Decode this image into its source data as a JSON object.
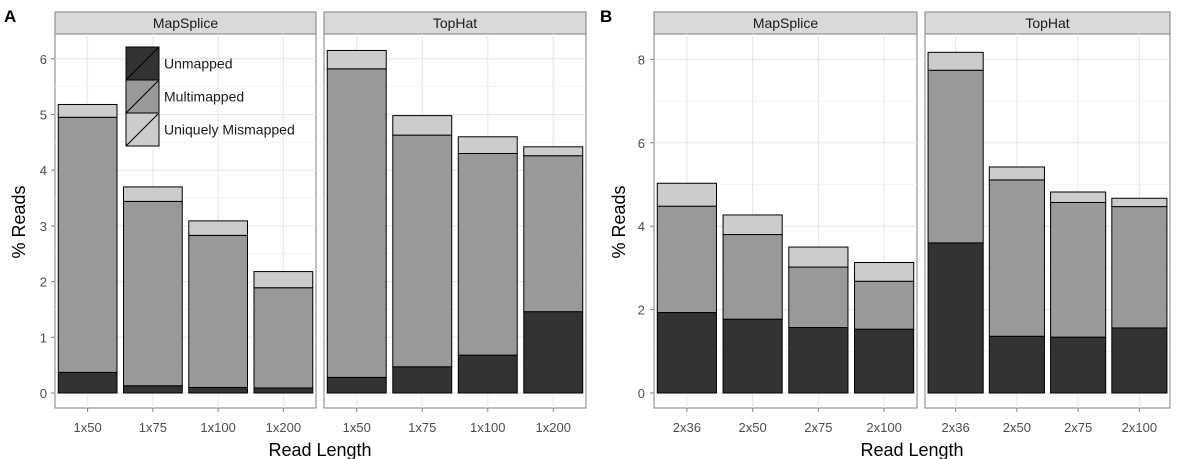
{
  "chart_data": [
    {
      "type": "bar",
      "stacked": true,
      "panel_letter": "A",
      "facets": [
        "MapSplice",
        "TopHat"
      ],
      "categories": [
        "1x50",
        "1x75",
        "1x100",
        "1x200"
      ],
      "xlabel": "Read Length",
      "ylabel": "% Reads",
      "ylim": [
        0,
        6.3
      ],
      "yticks": [
        "0",
        "1",
        "2",
        "3",
        "4",
        "5",
        "6"
      ],
      "grid": "on",
      "legend": {
        "placement": "top-right of first facet",
        "entries": [
          "Unmapped",
          "Multimapped",
          "Uniquely Mismapped"
        ]
      },
      "series": [
        {
          "name": "Unmapped",
          "color": "#333333",
          "values": {
            "MapSplice": [
              0.37,
              0.13,
              0.1,
              0.09
            ],
            "TopHat": [
              0.28,
              0.47,
              0.68,
              1.46
            ]
          }
        },
        {
          "name": "Multimapped",
          "color": "#999999",
          "values": {
            "MapSplice": [
              4.58,
              3.31,
              2.73,
              1.8
            ],
            "TopHat": [
              5.54,
              4.16,
              3.62,
              2.8
            ]
          }
        },
        {
          "name": "Uniquely Mismapped",
          "color": "#cccccc",
          "values": {
            "MapSplice": [
              0.23,
              0.26,
              0.26,
              0.29
            ],
            "TopHat": [
              0.33,
              0.35,
              0.3,
              0.16
            ]
          }
        }
      ]
    },
    {
      "type": "bar",
      "stacked": true,
      "panel_letter": "B",
      "facets": [
        "MapSplice",
        "TopHat"
      ],
      "categories": [
        "2x36",
        "2x50",
        "2x75",
        "2x100"
      ],
      "xlabel": "Read Length",
      "ylabel": "% Reads",
      "ylim": [
        0,
        8.5
      ],
      "yticks": [
        "0",
        "2",
        "4",
        "6",
        "8"
      ],
      "grid": "on",
      "series": [
        {
          "name": "Unmapped",
          "color": "#333333",
          "values": {
            "MapSplice": [
              1.93,
              1.77,
              1.57,
              1.53
            ],
            "TopHat": [
              3.6,
              1.36,
              1.34,
              1.56
            ]
          }
        },
        {
          "name": "Multimapped",
          "color": "#999999",
          "values": {
            "MapSplice": [
              2.55,
              2.03,
              1.45,
              1.15
            ],
            "TopHat": [
              4.14,
              3.75,
              3.23,
              2.91
            ]
          }
        },
        {
          "name": "Uniquely Mismapped",
          "color": "#cccccc",
          "values": {
            "MapSplice": [
              0.55,
              0.47,
              0.48,
              0.45
            ],
            "TopHat": [
              0.43,
              0.31,
              0.25,
              0.2
            ]
          }
        }
      ]
    }
  ]
}
